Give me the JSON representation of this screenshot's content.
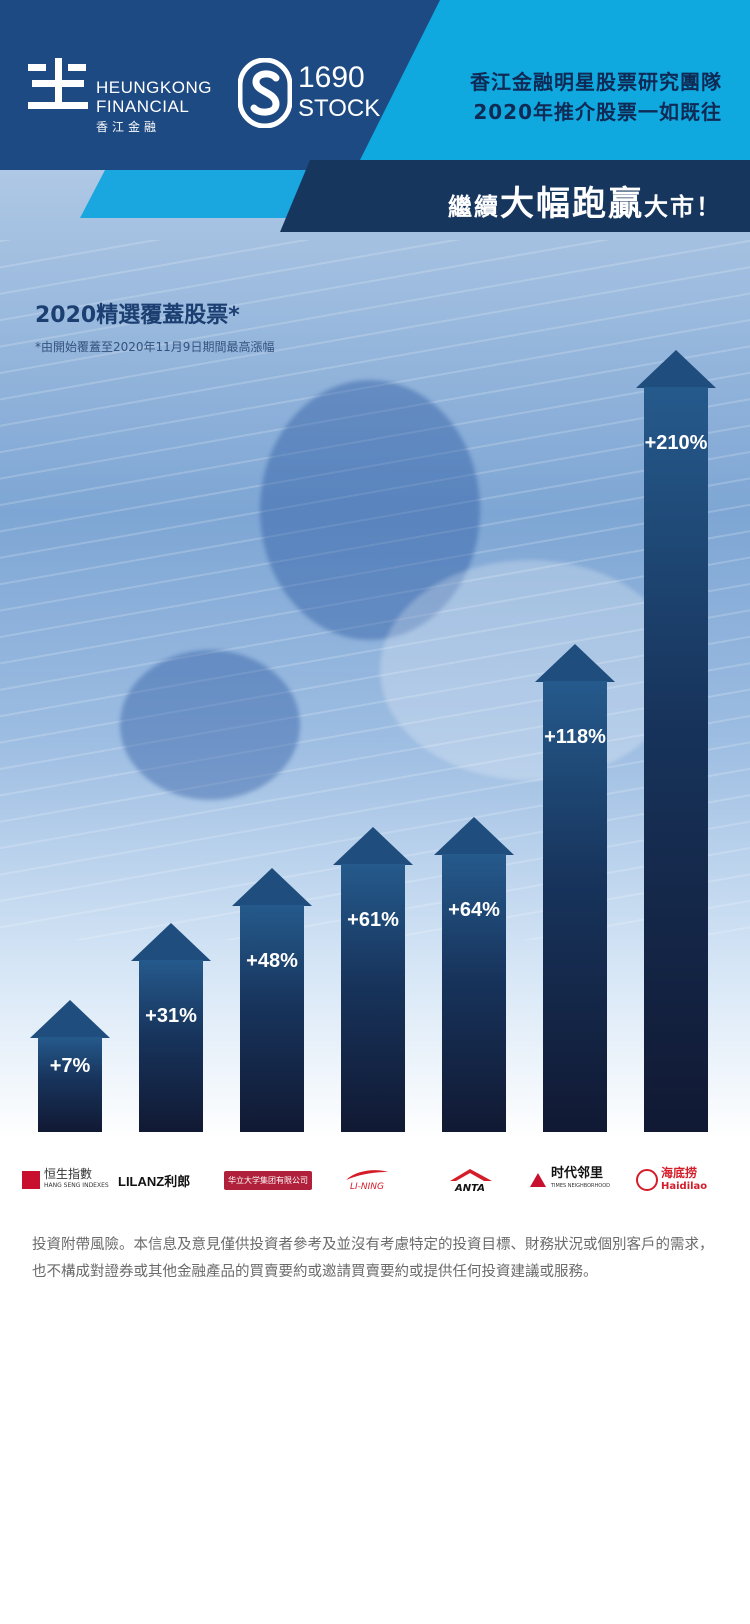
{
  "brand": {
    "heungkong_en": "HEUNGKONG\nFINANCIAL",
    "heungkong_cn": "香江金融",
    "stock_num": "1690",
    "stock_word": "STOCK"
  },
  "headline": {
    "line1": "香江金融明星股票研究團隊",
    "line2": "2020年推介股票一如既往",
    "slogan_a": "繼續",
    "slogan_b": "大幅跑贏",
    "slogan_c": "大市！"
  },
  "section": {
    "title": "2020精選覆蓋股票*",
    "note": "*由開始覆蓋至2020年11月9日期間最高漲幅"
  },
  "chart_data": {
    "type": "bar",
    "categories": [
      "恒生指數",
      "LILANZ利郎",
      "华立大学集团有限公司",
      "LI-NING",
      "ANTA",
      "时代邻里",
      "海底捞 Haidilao"
    ],
    "values": [
      7,
      31,
      48,
      61,
      64,
      118,
      210
    ],
    "labels": [
      "+7%",
      "+31%",
      "+48%",
      "+61%",
      "+64%",
      "+118%",
      "+210%"
    ],
    "ylabel": "",
    "unit": "%"
  },
  "logos": {
    "hsi_cn": "恒生指數",
    "hsi_en": "HANG SENG INDEXES",
    "lilanz": "LILANZ利郎",
    "huali": "华立大学集团有限公司",
    "lining": "LI-NING",
    "anta": "ANTA",
    "times_cn": "时代邻里",
    "times_en": "TIMES NEIGHBORHOOD",
    "haidilao_cn": "海底捞",
    "haidilao_en": "Haidilao"
  },
  "disclaimer": "投資附帶風險。本信息及意見僅供投資者參考及並沒有考慮特定的投資目標、財務狀況或個別客戶的需求，也不構成對證券或其他金融產品的買賣要約或邀請買賣要約或提供任何投資建議或服務。",
  "colors": {
    "header_navy": "#1d4a82",
    "header_cyan": "#0fa8df",
    "arrow_top": "#255a8c",
    "arrow_bottom": "#111933"
  }
}
